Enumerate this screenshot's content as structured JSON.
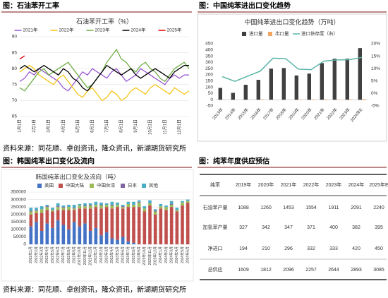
{
  "headers": [
    "图：石油苯开工率",
    "图：中国纯苯进出口变化趋势",
    "图：韩国纯苯出口变化及流向",
    "图：纯苯年度供应预估"
  ],
  "sources": [
    "资料来源：同花顺、卓创资讯，隆众资讯，新湖期货研究所",
    "资料来源：同花顺、卓创资讯，隆众资讯，新湖期货研究所"
  ],
  "chart_data": [
    {
      "type": "line",
      "title": "石油苯开工率（%）",
      "categories": [
        "1月1日",
        null,
        null,
        "2月1日",
        null,
        null,
        "3月1日",
        null,
        null,
        "4月1日",
        null,
        null,
        "5月1日",
        null,
        null,
        "6月1日",
        null,
        null,
        "7月1日",
        null,
        null,
        "8月1日",
        null,
        null,
        "9月1日",
        null,
        null,
        "10月1日",
        null,
        null,
        "11月1日",
        null,
        null,
        "12月1日",
        null,
        null
      ],
      "ylim": [
        65,
        90
      ],
      "yticks": [
        65,
        70,
        75,
        80,
        85,
        90
      ],
      "grid": true,
      "series": [
        {
          "name": "2021年",
          "color": "#9b59d0",
          "values": [
            76,
            77,
            79,
            78,
            80,
            79,
            78,
            77,
            76,
            74,
            73,
            75,
            77,
            79,
            78,
            80,
            79,
            78,
            77,
            79,
            80,
            78,
            76,
            77,
            78,
            80,
            79,
            78,
            77,
            76,
            75,
            77,
            78,
            77,
            78,
            78
          ]
        },
        {
          "name": "2022年",
          "color": "#f5c518",
          "values": [
            79,
            80,
            81,
            80,
            78,
            77,
            76,
            75,
            77,
            78,
            76,
            74,
            72,
            71,
            73,
            74,
            72,
            70,
            71,
            73,
            72,
            70,
            71,
            73,
            74,
            73,
            72,
            74,
            75,
            74,
            73,
            72,
            74,
            73,
            72,
            73
          ]
        },
        {
          "name": "2023年",
          "color": "#70ad47",
          "values": [
            74,
            73,
            75,
            77,
            79,
            80,
            78,
            79,
            80,
            81,
            82,
            80,
            78,
            76,
            74,
            75,
            77,
            79,
            82,
            84,
            86,
            83,
            82,
            80,
            79,
            81,
            82,
            80,
            79,
            77,
            76,
            78,
            80,
            81,
            82,
            80
          ]
        },
        {
          "name": "2024年",
          "color": "#000000",
          "values": [
            80,
            81,
            80,
            79,
            80,
            81,
            80,
            79,
            78,
            80,
            79,
            77,
            76,
            74,
            73,
            75,
            77,
            79,
            81,
            80,
            79,
            78,
            79,
            80,
            78,
            77,
            78,
            79,
            80,
            79,
            78,
            77,
            79,
            80,
            81,
            81
          ]
        },
        {
          "name": "2025年",
          "color": "#e00000",
          "values": [
            83,
            84,
            null,
            null,
            null,
            null,
            null,
            null,
            null,
            null,
            null,
            null,
            null,
            null,
            null,
            null,
            null,
            null,
            null,
            null,
            null,
            null,
            null,
            null,
            null,
            null,
            null,
            null,
            null,
            null,
            null,
            null,
            null,
            null,
            null,
            null
          ]
        }
      ]
    },
    {
      "type": "bar_line",
      "title": "中国纯苯进出口变化趋势（万吨）",
      "categories": [
        "2013年",
        "2014年",
        "2015年",
        "2016年",
        "2017年",
        "2018年",
        "2019年",
        "2020年",
        "2021年",
        "2022年",
        "2023年",
        "2024年E"
      ],
      "ylim": [
        -50,
        450
      ],
      "yticks": [
        -50,
        0,
        50,
        100,
        150,
        200,
        250,
        300,
        350,
        400,
        450
      ],
      "y2lim": [
        -5,
        20
      ],
      "y2ticks": [
        {
          "value": -5,
          "label": "-5%"
        },
        {
          "value": 0,
          "label": "0%"
        },
        {
          "value": 5,
          "label": "5%"
        },
        {
          "value": 10,
          "label": "10%"
        },
        {
          "value": 15,
          "label": "15%"
        },
        {
          "value": 20,
          "label": "20%"
        }
      ],
      "series": [
        {
          "name": "进口量",
          "color": "#404040",
          "values": [
            95,
            55,
            120,
            160,
            250,
            255,
            195,
            210,
            295,
            330,
            330,
            415
          ]
        },
        {
          "name": "出口量",
          "color": "#f4a460",
          "values": [
            2,
            1,
            1,
            3,
            1,
            1,
            2,
            3,
            4,
            2,
            3,
            5
          ]
        },
        {
          "name": "进口依存度（右）",
          "color": "#5bb5a8",
          "axis": "y2",
          "values": [
            6.8,
            4.9,
            7,
            9,
            14.2,
            14,
            9.8,
            9.6,
            13,
            13.5,
            13.6,
            14.5
          ]
        }
      ]
    },
    {
      "type": "stacked_bar",
      "title": "韩国纯苯出口变化及流向（吨）",
      "categories": [
        "2022年1月",
        "2022年2月",
        "2022年3月",
        "2022年4月",
        "2022年5月",
        "2022年6月",
        "2022年7月",
        "2022年8月",
        "2022年9月",
        "2022年10月",
        "2022年11月",
        "2022年12月",
        "2023年1月",
        "2023年2月",
        "2023年3月",
        "2023年4月",
        "2023年5月",
        "2023年6月",
        "2023年7月",
        "2023年8月",
        "2023年9月",
        "2023年10月",
        "2023年11月",
        "2023年12月",
        "2024年1月",
        "2024年2月",
        "2024年3月",
        "2024年4月",
        "2024年5月",
        "2024年6月"
      ],
      "ylim": [
        0,
        350000
      ],
      "yticks": [
        0,
        50000,
        100000,
        150000,
        200000,
        250000,
        300000,
        350000
      ],
      "grid": true,
      "series": [
        {
          "name": "美国",
          "color": "#4472c4",
          "values": [
            120000,
            150000,
            90000,
            140000,
            110000,
            160000,
            130000,
            100000,
            150000,
            120000,
            140000,
            90000,
            110000,
            60000,
            80000,
            40000,
            30000,
            50000,
            20000,
            10000,
            0,
            0,
            0,
            0,
            0,
            0,
            0,
            0,
            0,
            0
          ]
        },
        {
          "name": "中国大陆",
          "color": "#c0504d",
          "values": [
            80000,
            60000,
            120000,
            90000,
            110000,
            70000,
            100000,
            130000,
            80000,
            120000,
            100000,
            150000,
            140000,
            180000,
            170000,
            200000,
            220000,
            190000,
            230000,
            240000,
            250000,
            220000,
            260000,
            200000,
            240000,
            230000,
            250000,
            220000,
            260000,
            280000
          ]
        },
        {
          "name": "中国台湾",
          "color": "#9bbb59",
          "values": [
            20000,
            15000,
            25000,
            20000,
            10000,
            20000,
            15000,
            20000,
            10000,
            20000,
            15000,
            20000,
            15000,
            20000,
            15000,
            20000,
            15000,
            10000,
            20000,
            15000,
            30000,
            20000,
            15000,
            20000,
            15000,
            20000,
            15000,
            10000,
            20000,
            10000
          ]
        },
        {
          "name": "日本",
          "color": "#8064a2",
          "values": [
            5000,
            5000,
            0,
            5000,
            0,
            5000,
            5000,
            0,
            5000,
            0,
            5000,
            5000,
            0,
            5000,
            0,
            5000,
            0,
            5000,
            0,
            0,
            5000,
            0,
            0,
            5000,
            0,
            0,
            5000,
            0,
            0,
            0
          ]
        },
        {
          "name": "其他",
          "color": "#4bacc6",
          "values": [
            20000,
            15000,
            20000,
            10000,
            15000,
            20000,
            10000,
            15000,
            20000,
            10000,
            15000,
            10000,
            20000,
            15000,
            10000,
            20000,
            15000,
            10000,
            15000,
            20000,
            10000,
            15000,
            20000,
            10000,
            15000,
            10000,
            20000,
            15000,
            10000,
            10000
          ]
        }
      ]
    }
  ],
  "table": {
    "header": [
      "纯苯",
      "2019年",
      "2020年",
      "2021年",
      "2022年",
      "2023年",
      "2024年",
      "2025年E"
    ],
    "rows": [
      [
        "石油苯产量",
        1088,
        1260,
        1453,
        1554,
        1911,
        2091,
        2240
      ],
      [
        "加氢苯产量",
        327,
        342,
        347,
        371,
        400,
        382,
        395
      ],
      [
        "净进口",
        194,
        210,
        296,
        332,
        333,
        420,
        450
      ],
      [
        "总供应",
        1609,
        1812,
        2096,
        2257,
        2644,
        2893,
        3085
      ]
    ]
  }
}
